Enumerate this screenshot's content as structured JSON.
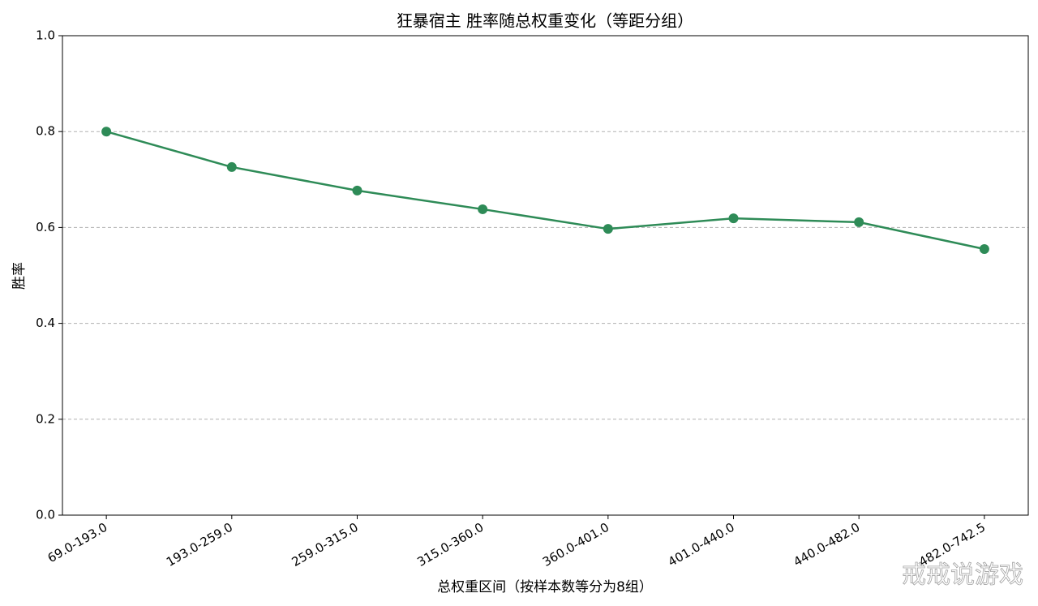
{
  "chart_data": {
    "type": "line",
    "title": "狂暴宿主 胜率随总权重变化（等距分组）",
    "x_label": "总权重区间（按样本数等分为8组）",
    "y_label": "胜率",
    "categories": [
      "69.0-193.0",
      "193.0-259.0",
      "259.0-315.0",
      "315.0-360.0",
      "360.0-401.0",
      "401.0-440.0",
      "440.0-482.0",
      "482.0-742.5"
    ],
    "values": [
      0.8,
      0.726,
      0.677,
      0.638,
      0.597,
      0.619,
      0.611,
      0.555
    ],
    "color": "#2e8b57",
    "ylim": [
      0,
      1
    ],
    "yticks": [
      {
        "value": 0,
        "label": "0.0"
      },
      0.2,
      0.4,
      0.6,
      0.8,
      {
        "value": 1,
        "label": "1.0"
      }
    ],
    "grid": true,
    "watermark": "戒戒说游戏"
  }
}
